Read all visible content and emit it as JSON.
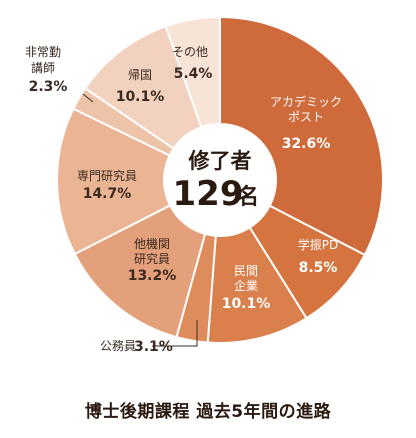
{
  "chart_data": {
    "type": "pie",
    "title": "博士後期課程 過去5年間の進路",
    "center_label": "修了者",
    "center_total": "129",
    "center_unit": "名",
    "slices": [
      {
        "label_lines": [
          "アカデミック",
          "ポスト"
        ],
        "value": 32.6,
        "display": "32.6%",
        "color": "#cf6a3a"
      },
      {
        "label_lines": [
          "学振PD"
        ],
        "value": 8.5,
        "display": "8.5%",
        "color": "#d5743f"
      },
      {
        "label_lines": [
          "民間",
          "企業"
        ],
        "value": 10.1,
        "display": "10.1%",
        "color": "#da804d"
      },
      {
        "label_lines": [
          "公務員"
        ],
        "value": 3.1,
        "display": "3.1%",
        "color": "#df8c5c"
      },
      {
        "label_lines": [
          "他機関",
          "研究員"
        ],
        "value": 13.2,
        "display": "13.2%",
        "color": "#e4a07a"
      },
      {
        "label_lines": [
          "専門研究員"
        ],
        "value": 14.7,
        "display": "14.7%",
        "color": "#ebb594"
      },
      {
        "label_lines": [
          "非常勤",
          "講師"
        ],
        "value": 2.3,
        "display": "2.3%",
        "color": "#eec4a8"
      },
      {
        "label_lines": [
          "帰国"
        ],
        "value": 10.1,
        "display": "10.1%",
        "color": "#f2d2bf"
      },
      {
        "label_lines": [
          "その他"
        ],
        "value": 5.4,
        "display": "5.4%",
        "color": "#f7e4d6"
      }
    ]
  }
}
